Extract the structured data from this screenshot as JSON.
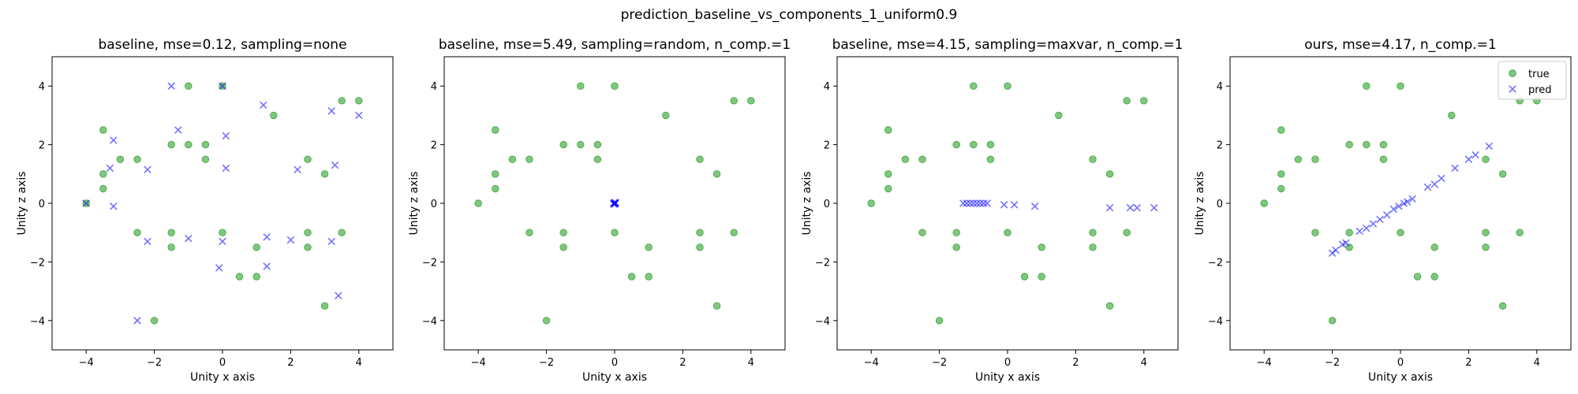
{
  "figure": {
    "suptitle": "prediction_baseline_vs_components_1_uniform0.9"
  },
  "colors": {
    "true": "#2ca02c",
    "pred": "#0000ff"
  },
  "legend": {
    "placement": "top-right",
    "entries": [
      "true",
      "pred"
    ]
  },
  "true_points": [
    [
      -4,
      0
    ],
    [
      -3.5,
      0.5
    ],
    [
      -3.5,
      1
    ],
    [
      -3.5,
      2.5
    ],
    [
      -3,
      1.5
    ],
    [
      -2.5,
      1.5
    ],
    [
      -2.5,
      -1
    ],
    [
      -2,
      -4
    ],
    [
      -1.5,
      -1
    ],
    [
      -1.5,
      -1.5
    ],
    [
      -1.5,
      2
    ],
    [
      -1,
      2
    ],
    [
      -1,
      4
    ],
    [
      -0.5,
      1.5
    ],
    [
      -0.5,
      2
    ],
    [
      0,
      -1
    ],
    [
      0,
      4
    ],
    [
      0.5,
      -2.5
    ],
    [
      1,
      -2.5
    ],
    [
      1,
      -1.5
    ],
    [
      1.5,
      3
    ],
    [
      2.5,
      -1
    ],
    [
      2.5,
      -1.5
    ],
    [
      2.5,
      1.5
    ],
    [
      3,
      -3.5
    ],
    [
      3,
      1
    ],
    [
      3.5,
      -1
    ],
    [
      3.5,
      3.5
    ],
    [
      4,
      3.5
    ]
  ],
  "chart_data": [
    {
      "type": "scatter",
      "title": "baseline, mse=0.12, sampling=none",
      "xlabel": "Unity x axis",
      "ylabel": "Unity z axis",
      "xlim": [
        -5,
        5
      ],
      "ylim": [
        -5,
        5
      ],
      "xticks": [
        -4,
        -2,
        0,
        2,
        4
      ],
      "yticks": [
        -4,
        -2,
        0,
        2,
        4
      ],
      "grid": false,
      "series": [
        {
          "name": "true",
          "marker": "circle",
          "points_ref": "true_points"
        },
        {
          "name": "pred",
          "marker": "x",
          "points": [
            [
              -4,
              0
            ],
            [
              -3.3,
              1.2
            ],
            [
              -3.2,
              2.15
            ],
            [
              -3.2,
              -0.1
            ],
            [
              -2.5,
              -4
            ],
            [
              -2.2,
              1.15
            ],
            [
              -2.2,
              -1.3
            ],
            [
              -1.5,
              4
            ],
            [
              -1.3,
              2.5
            ],
            [
              -1,
              -1.2
            ],
            [
              -0.1,
              -2.2
            ],
            [
              0,
              4
            ],
            [
              0,
              -1.3
            ],
            [
              0.1,
              2.3
            ],
            [
              0.1,
              1.2
            ],
            [
              1.2,
              3.35
            ],
            [
              1.3,
              -1.15
            ],
            [
              1.3,
              -2.15
            ],
            [
              2,
              -1.25
            ],
            [
              2.2,
              1.15
            ],
            [
              3.2,
              3.15
            ],
            [
              3.2,
              -1.3
            ],
            [
              3.3,
              1.3
            ],
            [
              3.4,
              -3.15
            ],
            [
              4,
              3
            ]
          ]
        }
      ]
    },
    {
      "type": "scatter",
      "title": "baseline, mse=5.49, sampling=random, n_comp.=1",
      "xlabel": "Unity x axis",
      "ylabel": "Unity z axis",
      "xlim": [
        -5,
        5
      ],
      "ylim": [
        -5,
        5
      ],
      "xticks": [
        -4,
        -2,
        0,
        2,
        4
      ],
      "yticks": [
        -4,
        -2,
        0,
        2,
        4
      ],
      "grid": false,
      "series": [
        {
          "name": "true",
          "marker": "circle",
          "points_ref": "true_points"
        },
        {
          "name": "pred",
          "marker": "x",
          "points": [
            [
              -0.02,
              -0.03
            ],
            [
              0,
              0
            ],
            [
              0.02,
              0.02
            ],
            [
              0.01,
              -0.02
            ],
            [
              -0.01,
              0.03
            ],
            [
              0.03,
              0.01
            ],
            [
              -0.03,
              -0.01
            ]
          ]
        }
      ]
    },
    {
      "type": "scatter",
      "title": "baseline, mse=4.15, sampling=maxvar, n_comp.=1",
      "xlabel": "Unity x axis",
      "ylabel": "Unity z axis",
      "xlim": [
        -5,
        5
      ],
      "ylim": [
        -5,
        5
      ],
      "xticks": [
        -4,
        -2,
        0,
        2,
        4
      ],
      "yticks": [
        -4,
        -2,
        0,
        2,
        4
      ],
      "grid": false,
      "series": [
        {
          "name": "true",
          "marker": "circle",
          "points_ref": "true_points"
        },
        {
          "name": "pred",
          "marker": "x",
          "points": [
            [
              -1.3,
              0
            ],
            [
              -1.2,
              0
            ],
            [
              -1.1,
              0
            ],
            [
              -1.0,
              0
            ],
            [
              -0.9,
              0
            ],
            [
              -0.8,
              0
            ],
            [
              -0.7,
              0
            ],
            [
              -0.6,
              0
            ],
            [
              -0.1,
              -0.05
            ],
            [
              0.2,
              -0.05
            ],
            [
              0.8,
              -0.1
            ],
            [
              3.0,
              -0.15
            ],
            [
              3.6,
              -0.15
            ],
            [
              3.8,
              -0.15
            ],
            [
              4.3,
              -0.15
            ]
          ]
        }
      ]
    },
    {
      "type": "scatter",
      "title": "ours, mse=4.17, n_comp.=1",
      "xlabel": "Unity x axis",
      "ylabel": "Unity z axis",
      "xlim": [
        -5,
        5
      ],
      "ylim": [
        -5,
        5
      ],
      "xticks": [
        -4,
        -2,
        0,
        2,
        4
      ],
      "yticks": [
        -4,
        -2,
        0,
        2,
        4
      ],
      "grid": false,
      "legend": [
        "true",
        "pred"
      ],
      "series": [
        {
          "name": "true",
          "marker": "circle",
          "points_ref": "true_points"
        },
        {
          "name": "pred",
          "marker": "x",
          "points": [
            [
              -2.0,
              -1.7
            ],
            [
              -1.9,
              -1.6
            ],
            [
              -1.7,
              -1.4
            ],
            [
              -1.6,
              -1.35
            ],
            [
              -1.2,
              -0.95
            ],
            [
              -1.0,
              -0.85
            ],
            [
              -0.8,
              -0.7
            ],
            [
              -0.6,
              -0.55
            ],
            [
              -0.4,
              -0.4
            ],
            [
              -0.2,
              -0.2
            ],
            [
              -0.05,
              -0.1
            ],
            [
              0.1,
              0.0
            ],
            [
              0.2,
              0.05
            ],
            [
              0.35,
              0.15
            ],
            [
              0.8,
              0.55
            ],
            [
              1.0,
              0.65
            ],
            [
              1.2,
              0.85
            ],
            [
              1.6,
              1.2
            ],
            [
              2.0,
              1.5
            ],
            [
              2.2,
              1.65
            ],
            [
              2.6,
              1.95
            ]
          ]
        }
      ]
    }
  ]
}
